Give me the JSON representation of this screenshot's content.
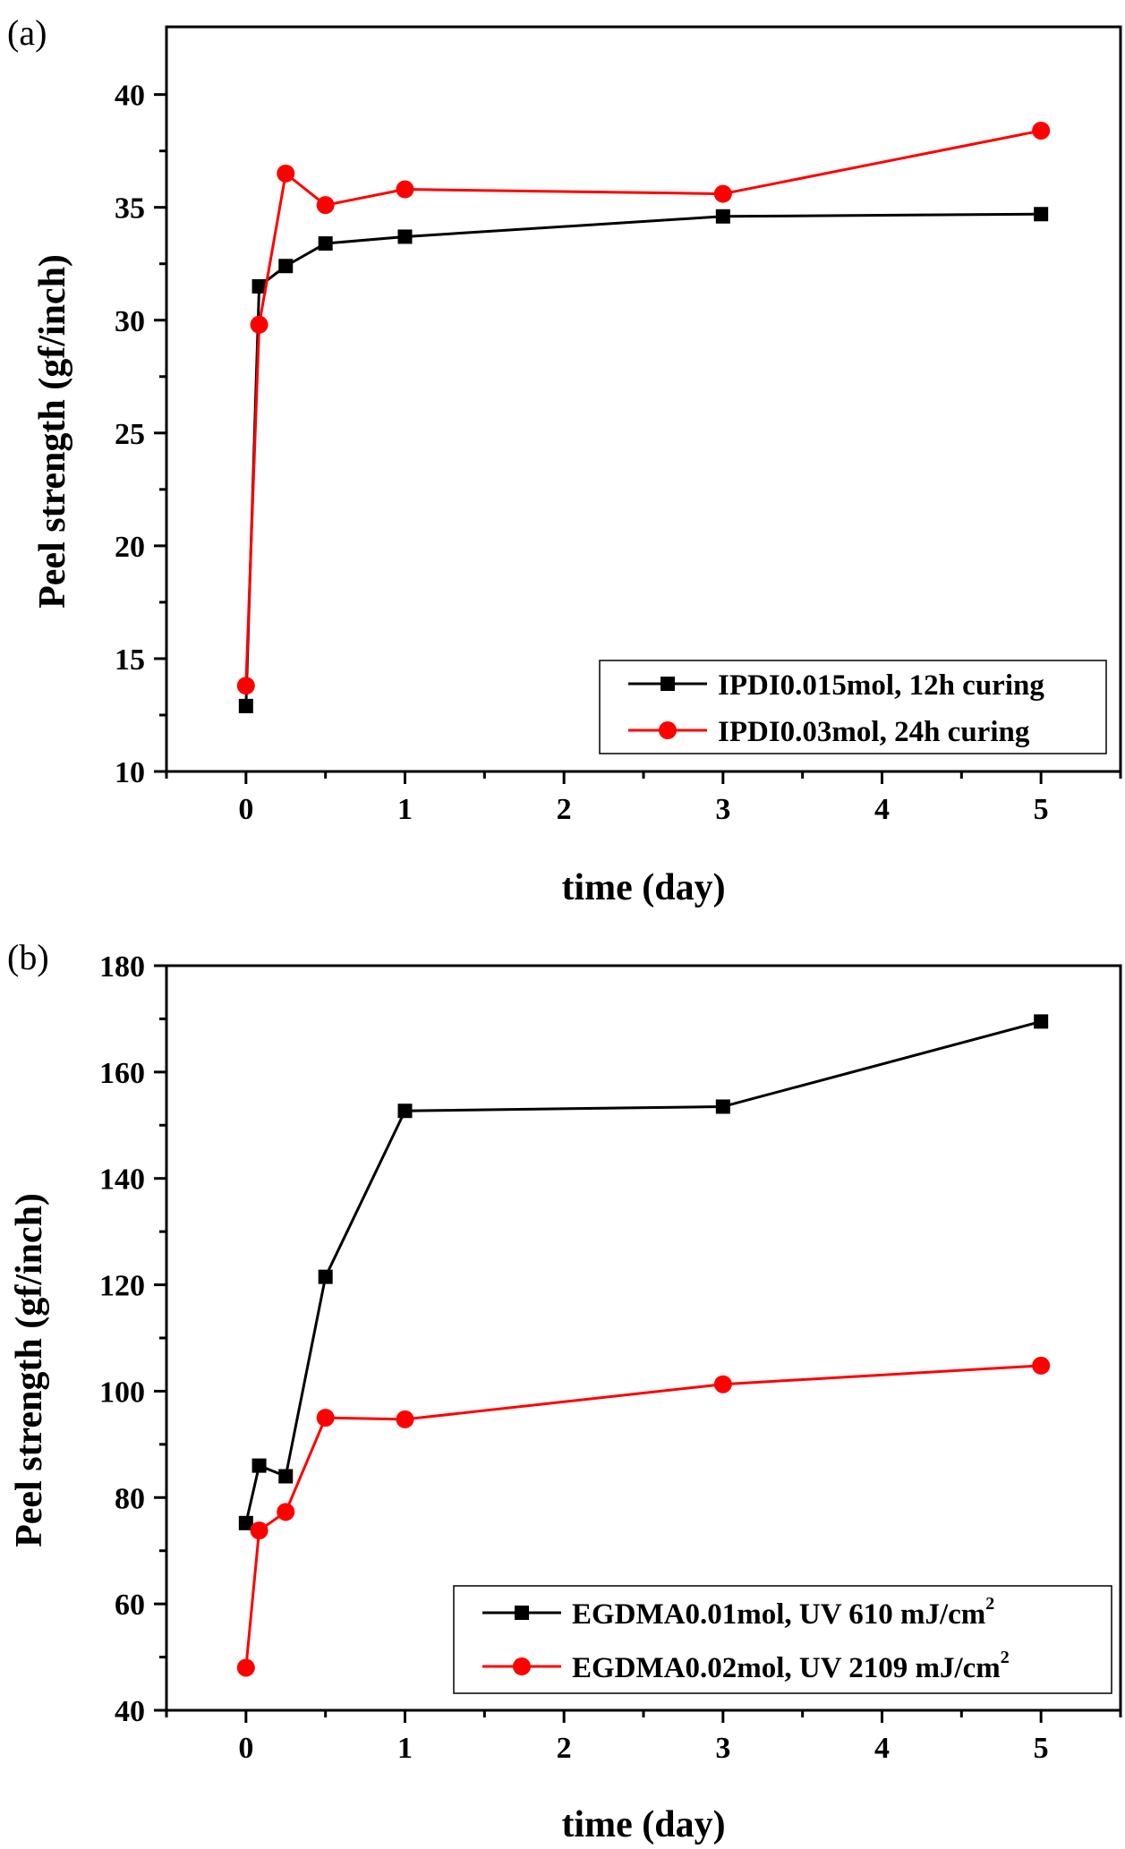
{
  "chart_data": [
    {
      "panel_label": "(a)",
      "type": "line",
      "xlabel": "time (day)",
      "ylabel": "Peel strength (gf/inch)",
      "xlim": [
        -0.5,
        5.5
      ],
      "ylim": [
        10,
        43
      ],
      "xticks": [
        0,
        1,
        2,
        3,
        4,
        5
      ],
      "yticks": [
        10,
        15,
        20,
        25,
        30,
        35,
        40
      ],
      "grid": false,
      "legend_position": "bottom-right",
      "series": [
        {
          "name": "IPDI0.015mol, 12h curing",
          "name_sup": "",
          "color": "#000000",
          "marker": "square",
          "x": [
            0,
            0.083,
            0.25,
            0.5,
            1,
            3,
            5
          ],
          "y": [
            12.9,
            31.5,
            32.4,
            33.4,
            33.7,
            34.6,
            34.7
          ]
        },
        {
          "name": "IPDI0.03mol, 24h curing",
          "name_sup": "",
          "color": "#ff0000",
          "marker": "circle",
          "x": [
            0,
            0.083,
            0.25,
            0.5,
            1,
            3,
            5
          ],
          "y": [
            13.8,
            29.8,
            36.5,
            35.1,
            35.8,
            35.6,
            38.4
          ]
        }
      ]
    },
    {
      "panel_label": "(b)",
      "type": "line",
      "xlabel": "time (day)",
      "ylabel": "Peel strength (gf/inch)",
      "xlim": [
        -0.5,
        5.5
      ],
      "ylim": [
        40,
        180
      ],
      "xticks": [
        0,
        1,
        2,
        3,
        4,
        5
      ],
      "yticks": [
        40,
        60,
        80,
        100,
        120,
        140,
        160,
        180
      ],
      "grid": false,
      "legend_position": "bottom-right",
      "series": [
        {
          "name": "EGDMA0.01mol, UV 610 mJ/cm",
          "name_sup": "2",
          "color": "#000000",
          "marker": "square",
          "x": [
            0,
            0.083,
            0.25,
            0.5,
            1,
            3,
            5
          ],
          "y": [
            75.2,
            86,
            84,
            121.5,
            152.7,
            153.5,
            169.5
          ]
        },
        {
          "name": "EGDMA0.02mol, UV 2109 mJ/cm",
          "name_sup": "2",
          "color": "#ff0000",
          "marker": "circle",
          "x": [
            0,
            0.083,
            0.25,
            0.5,
            1,
            3,
            5
          ],
          "y": [
            48,
            73.8,
            77.3,
            95,
            94.7,
            101.3,
            104.8
          ]
        }
      ]
    }
  ]
}
